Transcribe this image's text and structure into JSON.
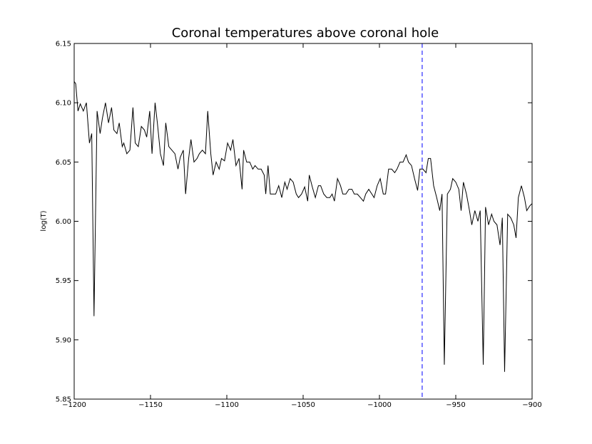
{
  "chart_data": {
    "type": "line",
    "title": "Coronal temperatures above coronal hole",
    "y_label": "log(T)",
    "color": "#000000",
    "x": [
      -1200,
      -1199,
      -1197.5,
      -1196,
      -1194,
      -1192,
      -1190,
      -1188.5,
      -1187,
      -1185,
      -1183,
      -1181.5,
      -1179.5,
      -1177.5,
      -1175.5,
      -1174,
      -1172,
      -1170.5,
      -1168.5,
      -1167.5,
      -1165.5,
      -1163.5,
      -1161.5,
      -1160,
      -1158,
      -1156,
      -1154,
      -1152.5,
      -1150.5,
      -1149,
      -1147,
      -1145.5,
      -1143.5,
      -1141.5,
      -1140,
      -1138,
      -1136,
      -1134,
      -1132,
      -1130.5,
      -1128.5,
      -1127,
      -1125,
      -1123.5,
      -1121.5,
      -1119.5,
      -1118,
      -1116,
      -1114,
      -1112.5,
      -1110.5,
      -1109,
      -1107,
      -1105,
      -1103.5,
      -1101.5,
      -1099.5,
      -1097.5,
      -1096,
      -1094,
      -1092,
      -1090,
      -1089,
      -1087,
      -1085,
      -1083,
      -1081.5,
      -1079.5,
      -1077.5,
      -1075.5,
      -1074.5,
      -1073,
      -1071.5,
      -1069.5,
      -1068,
      -1066,
      -1064,
      -1062,
      -1060.5,
      -1058.5,
      -1056.5,
      -1054.5,
      -1053,
      -1051,
      -1049,
      -1047,
      -1046,
      -1044,
      -1042,
      -1040,
      -1038.5,
      -1036.5,
      -1034.5,
      -1032.5,
      -1031,
      -1029.5,
      -1027.5,
      -1025.5,
      -1024,
      -1022,
      -1020,
      -1018,
      -1016.5,
      -1014.5,
      -1012.5,
      -1010.5,
      -1009,
      -1007,
      -1005,
      -1003.5,
      -1001.5,
      -999.5,
      -997.5,
      -996,
      -994,
      -992,
      -990,
      -988.5,
      -986.5,
      -984.5,
      -982.5,
      -981,
      -979,
      -977,
      -975,
      -973.5,
      -971.5,
      -969.5,
      -968,
      -966.5,
      -964.5,
      -962.5,
      -960.5,
      -959,
      -957.5,
      -955.5,
      -953.5,
      -952,
      -950,
      -948,
      -946.5,
      -945,
      -943,
      -941,
      -939.5,
      -937.5,
      -935.5,
      -934,
      -932,
      -930.5,
      -928.5,
      -926.5,
      -925,
      -923,
      -921,
      -919.5,
      -918,
      -916,
      -914,
      -912,
      -910.5,
      -909,
      -907,
      -905,
      -903.5,
      -901.5,
      -900
    ],
    "values": [
      6.118,
      6.116,
      6.093,
      6.099,
      6.093,
      6.1,
      6.066,
      6.074,
      5.92,
      6.093,
      6.074,
      6.087,
      6.1,
      6.083,
      6.096,
      6.077,
      6.074,
      6.083,
      6.063,
      6.066,
      6.057,
      6.06,
      6.096,
      6.066,
      6.063,
      6.08,
      6.077,
      6.071,
      6.093,
      6.057,
      6.1,
      6.083,
      6.057,
      6.047,
      6.083,
      6.063,
      6.06,
      6.057,
      6.044,
      6.054,
      6.06,
      6.023,
      6.053,
      6.069,
      6.05,
      6.053,
      6.057,
      6.06,
      6.057,
      6.093,
      6.057,
      6.039,
      6.05,
      6.044,
      6.053,
      6.051,
      6.066,
      6.06,
      6.069,
      6.047,
      6.053,
      6.027,
      6.06,
      6.05,
      6.05,
      6.044,
      6.047,
      6.044,
      6.044,
      6.039,
      6.023,
      6.047,
      6.023,
      6.023,
      6.023,
      6.03,
      6.02,
      6.033,
      6.027,
      6.036,
      6.033,
      6.023,
      6.02,
      6.023,
      6.029,
      6.017,
      6.039,
      6.029,
      6.02,
      6.03,
      6.03,
      6.023,
      6.02,
      6.02,
      6.023,
      6.017,
      6.036,
      6.03,
      6.023,
      6.023,
      6.027,
      6.027,
      6.023,
      6.023,
      6.02,
      6.017,
      6.023,
      6.027,
      6.023,
      6.02,
      6.03,
      6.036,
      6.023,
      6.023,
      6.044,
      6.044,
      6.041,
      6.044,
      6.05,
      6.05,
      6.056,
      6.05,
      6.047,
      6.036,
      6.026,
      6.044,
      6.044,
      6.041,
      6.053,
      6.053,
      6.03,
      6.02,
      6.009,
      6.023,
      5.879,
      6.023,
      6.027,
      6.036,
      6.033,
      6.027,
      6.009,
      6.033,
      6.023,
      6.009,
      5.997,
      6.009,
      6.0,
      6.009,
      5.879,
      6.012,
      5.997,
      6.006,
      6.0,
      5.997,
      5.98,
      6.003,
      5.873,
      6.006,
      6.003,
      5.997,
      5.986,
      6.02,
      6.03,
      6.02,
      6.009,
      6.013,
      6.015
    ],
    "vline": -972,
    "vline_color": "#0000ff",
    "xlim": [
      -1200,
      -900
    ],
    "xticks": [
      {
        "value": -1200,
        "label": "−1200"
      },
      {
        "value": -1150,
        "label": "−1150"
      },
      {
        "value": -1100,
        "label": "−1100"
      },
      {
        "value": -1050,
        "label": "−1050"
      },
      {
        "value": -1000,
        "label": "−1000"
      },
      {
        "value": -950,
        "label": "−950"
      },
      {
        "value": -900,
        "label": "−900"
      }
    ],
    "ylim": [
      5.85,
      6.15
    ],
    "yticks": [
      5.85,
      {
        "value": 5.9,
        "label": "5.90"
      },
      5.95,
      {
        "value": 6.0,
        "label": "6.00"
      },
      6.05,
      {
        "value": 6.1,
        "label": "6.10"
      },
      6.15
    ]
  }
}
